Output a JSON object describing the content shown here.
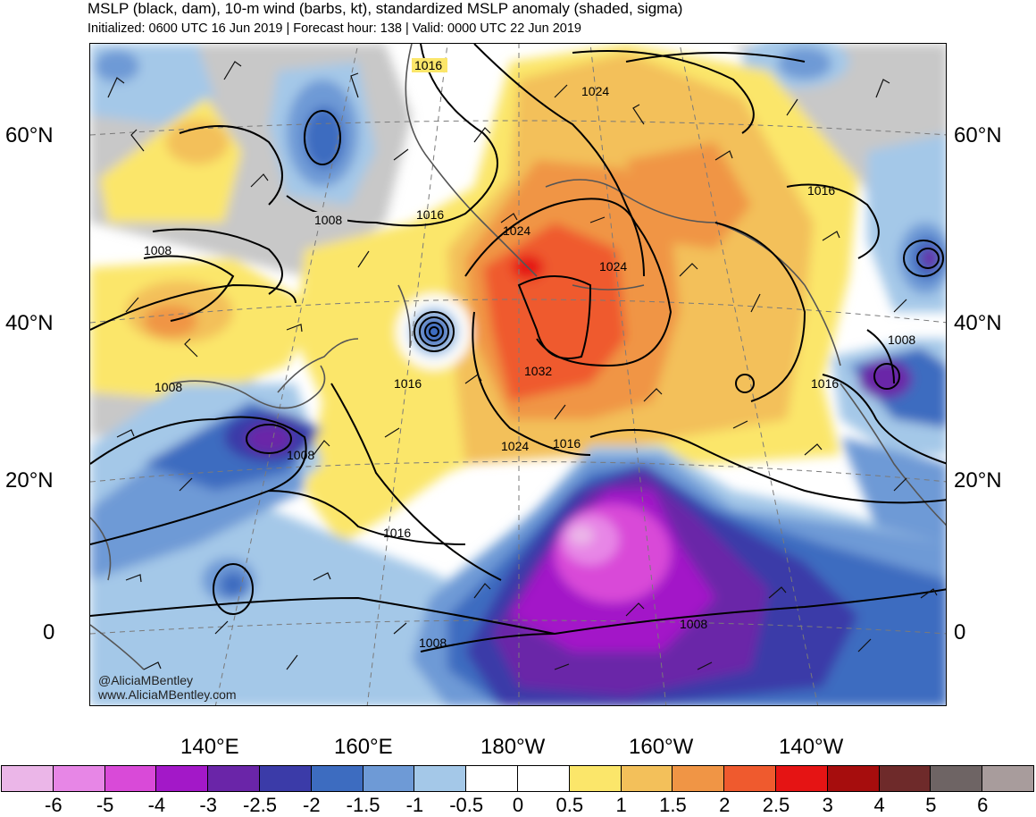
{
  "header": {
    "title": "MSLP (black, dam), 10-m wind (barbs, kt), standardized MSLP anomaly (shaded, sigma)",
    "subtitle": "Initialized: 0600 UTC 16 Jun 2019 | Forecast hour: 138 | Valid: 0000 UTC 22 Jun 2019"
  },
  "lat_labels": [
    "60°N",
    "40°N",
    "20°N",
    "0"
  ],
  "lon_labels": [
    "140°E",
    "160°E",
    "180°W",
    "160°W",
    "140°W"
  ],
  "contour_labels": [
    "1016",
    "1024",
    "1008",
    "1016",
    "1024",
    "1024",
    "1016",
    "1008",
    "1008",
    "1016",
    "1032",
    "1016",
    "1008",
    "1024",
    "1016",
    "1016",
    "1008",
    "1008"
  ],
  "credit": {
    "line1": "@AliciaMBentley",
    "line2": "www.AliciaMBentley.com"
  },
  "colorbar": {
    "colors": [
      "#ebb6e8",
      "#e786e6",
      "#d94ad8",
      "#a318c8",
      "#6a25a8",
      "#3b3ba8",
      "#3d6cc0",
      "#6e9ad6",
      "#a4c8e8",
      "#ffffff",
      "#ffffff",
      "#fbe66a",
      "#f3c05a",
      "#f09545",
      "#ef5a2e",
      "#e51414",
      "#a60d0d",
      "#6e2a2a",
      "#6e6464",
      "#a89c9c"
    ],
    "labels": [
      "-6",
      "-5",
      "-4",
      "-3",
      "-2.5",
      "-2",
      "-1.5",
      "-1",
      "-0.5",
      "0",
      "0.5",
      "1",
      "1.5",
      "2",
      "2.5",
      "3",
      "4",
      "5",
      "6"
    ]
  },
  "palette": {
    "land_gray": "#c8c8c8",
    "neg1": "#a4c8e8",
    "neg2": "#6e9ad6",
    "neg3": "#3d6cc0",
    "neg4": "#3b3ba8",
    "neg5": "#6a25a8",
    "neg6": "#a318c8",
    "neg7": "#d94ad8",
    "neg8": "#e786e6",
    "pos1": "#fbe66a",
    "pos2": "#f3c05a",
    "pos3": "#f09545",
    "pos4": "#ef5a2e",
    "pos5": "#e51414"
  }
}
